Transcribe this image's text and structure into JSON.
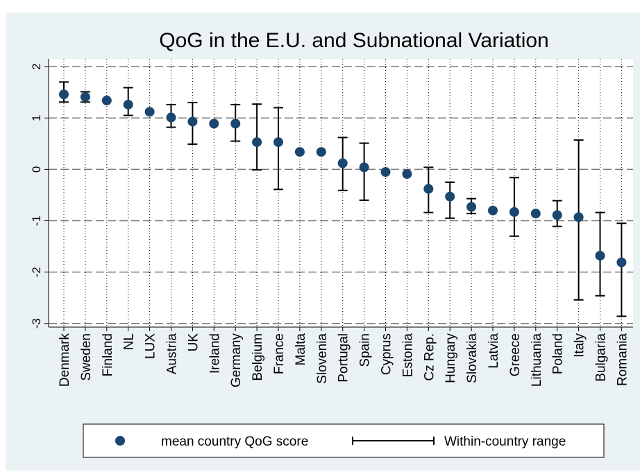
{
  "chart_data": {
    "type": "dot-range",
    "title": "QoG in the E.U. and Subnational Variation",
    "categories": [
      "Denmark",
      "Sweden",
      "Finland",
      "NL",
      "LUX",
      "Austria",
      "UK",
      "Ireland",
      "Germany",
      "Belgium",
      "France",
      "Malta",
      "Slovenia",
      "Portugal",
      "Spain",
      "Cyprus",
      "Estonia",
      "Cz Rep.",
      "Hungary",
      "Slovakia",
      "Latvia",
      "Greece",
      "Lithuania",
      "Poland",
      "Italy",
      "Bulgaria",
      "Romania"
    ],
    "series": [
      {
        "name": "mean country QoG score",
        "color": "#1a476f",
        "values": [
          1.46,
          1.41,
          1.34,
          1.26,
          1.12,
          1.01,
          0.93,
          0.89,
          0.89,
          0.53,
          0.53,
          0.34,
          0.34,
          0.12,
          0.04,
          -0.05,
          -0.09,
          -0.38,
          -0.53,
          -0.73,
          -0.8,
          -0.83,
          -0.86,
          -0.89,
          -0.93,
          -1.68,
          -1.81
        ]
      },
      {
        "name": "Within-country range",
        "color": "#000000",
        "high": [
          1.7,
          1.51,
          null,
          1.59,
          null,
          1.26,
          1.3,
          null,
          1.26,
          1.27,
          1.2,
          null,
          null,
          0.62,
          0.51,
          null,
          null,
          0.04,
          -0.25,
          -0.57,
          null,
          -0.16,
          null,
          -0.61,
          0.57,
          -0.84,
          -1.05
        ],
        "low": [
          1.31,
          1.31,
          null,
          1.05,
          null,
          0.82,
          0.49,
          null,
          0.55,
          -0.01,
          -0.39,
          null,
          null,
          -0.41,
          -0.6,
          null,
          null,
          -0.84,
          -0.95,
          -0.86,
          null,
          -1.3,
          null,
          -1.11,
          -2.54,
          -2.46,
          -2.86
        ]
      }
    ],
    "ylim": [
      -3.07,
      2.15
    ],
    "yticks": [
      -3,
      -2,
      -1,
      0,
      1,
      2
    ],
    "grid": true
  }
}
